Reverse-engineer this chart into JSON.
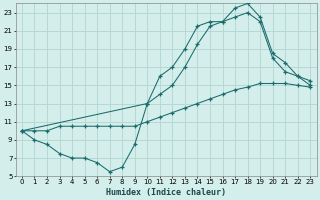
{
  "xlabel": "Humidex (Indice chaleur)",
  "bg_color": "#d4eeec",
  "grid_color": "#b8d8d4",
  "line_color": "#1a6b6b",
  "xlim": [
    -0.5,
    23.5
  ],
  "ylim": [
    5,
    24
  ],
  "xticks": [
    0,
    1,
    2,
    3,
    4,
    5,
    6,
    7,
    8,
    9,
    10,
    11,
    12,
    13,
    14,
    15,
    16,
    17,
    18,
    19,
    20,
    21,
    22,
    23
  ],
  "yticks": [
    5,
    7,
    9,
    11,
    13,
    15,
    17,
    19,
    21,
    23
  ],
  "line1_x": [
    0,
    1,
    2,
    3,
    4,
    5,
    6,
    7,
    8,
    9,
    10,
    11,
    12,
    13,
    14,
    15,
    16,
    17,
    18,
    19,
    20,
    21,
    22,
    23
  ],
  "line1_y": [
    10,
    9,
    8.5,
    7.5,
    7,
    7,
    6.5,
    5.5,
    6,
    8.5,
    13,
    16,
    17,
    19,
    21.5,
    22,
    22,
    23.5,
    24,
    22.5,
    18.5,
    17.5,
    16,
    15.5
  ],
  "line2_x": [
    0,
    1,
    2,
    3,
    4,
    5,
    6,
    7,
    8,
    9,
    10,
    11,
    12,
    13,
    14,
    15,
    16,
    17,
    18,
    19,
    20,
    21,
    22,
    23
  ],
  "line2_y": [
    10,
    10,
    10,
    10.5,
    10.5,
    10.5,
    10.5,
    10.5,
    10.5,
    10.5,
    11,
    11.5,
    12,
    12.5,
    13,
    13.5,
    14,
    14.5,
    14.8,
    15.2,
    15.2,
    15.2,
    15,
    14.8
  ],
  "line3_x": [
    0,
    10,
    11,
    12,
    13,
    14,
    15,
    16,
    17,
    18,
    19,
    20,
    21,
    22,
    23
  ],
  "line3_y": [
    10,
    13,
    14,
    15,
    17,
    19.5,
    21.5,
    22,
    22.5,
    23,
    22,
    18,
    16.5,
    16,
    15
  ]
}
